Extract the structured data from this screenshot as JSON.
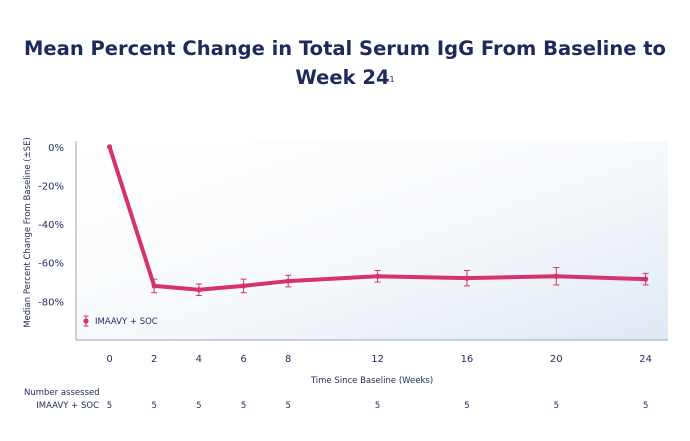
{
  "title": {
    "text": "Mean Percent Change in Total Serum IgG From Baseline to Week 24",
    "footnote": "1"
  },
  "chart_data": {
    "type": "line",
    "title": "Mean Percent Change in Total Serum IgG From Baseline to Week 24",
    "xlabel": "Time Since Baseline (Weeks)",
    "ylabel": "Median Percent Change From Baseline (±SE)",
    "x": [
      0,
      2,
      4,
      6,
      8,
      12,
      16,
      20,
      24
    ],
    "x_tick_labels": [
      "0",
      "2",
      "4",
      "6",
      "8",
      "12",
      "16",
      "20",
      "24"
    ],
    "y_ticks": [
      0,
      -20,
      -40,
      -60,
      -80
    ],
    "y_tick_labels": [
      "0%",
      "-20%",
      "-40%",
      "-60%",
      "-80%"
    ],
    "ylim": [
      -100,
      3
    ],
    "xlim": [
      -1.5,
      25
    ],
    "grid": false,
    "legend_position": "bottom-left",
    "series": [
      {
        "name": "IMAAVY + SOC",
        "color": "#d6336c",
        "values": [
          0,
          -72,
          -74,
          -72,
          -69.5,
          -67,
          -68,
          -67,
          -68.5
        ],
        "se": [
          0,
          3.5,
          3,
          3.5,
          3,
          3,
          4,
          4.5,
          3
        ]
      }
    ],
    "number_assessed": {
      "header": "Number assessed",
      "row_label": "IMAAVY + SOC",
      "values": [
        "5",
        "5",
        "5",
        "5",
        "5",
        "5",
        "5",
        "5",
        "5"
      ]
    }
  }
}
